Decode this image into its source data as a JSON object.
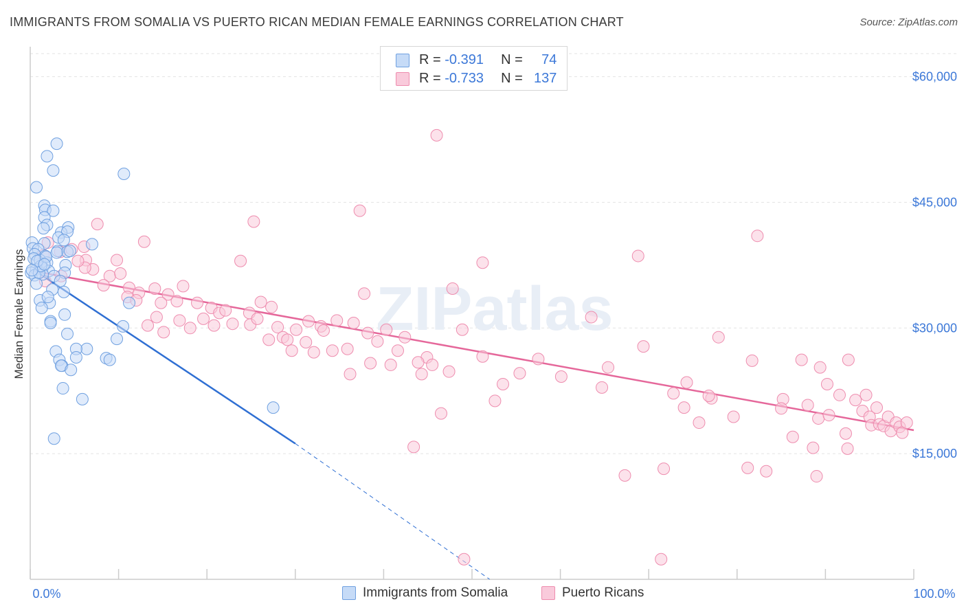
{
  "title": "IMMIGRANTS FROM SOMALIA VS PUERTO RICAN MEDIAN FEMALE EARNINGS CORRELATION CHART",
  "source": "Source: ZipAtlas.com",
  "watermark": "ZIPatlas",
  "legend": {
    "somalia": {
      "r_label": "R =",
      "r_value": "-0.391",
      "n_label": "N =",
      "n_value": "74"
    },
    "puerto": {
      "r_label": "R =",
      "r_value": "-0.733",
      "n_label": "N =",
      "n_value": "137"
    }
  },
  "bottom_legend": {
    "somalia": "Immigrants from Somalia",
    "puerto": "Puerto Ricans"
  },
  "colors": {
    "somalia_fill": "#c6dbf7",
    "somalia_stroke": "#6fa0e0",
    "somalia_line": "#2f6fd3",
    "puerto_fill": "#f9cadb",
    "puerto_stroke": "#ee8cae",
    "puerto_line": "#e5679a",
    "tick_text": "#3c78d8",
    "grid": "#e3e3e3"
  },
  "chart_data": {
    "type": "scatter",
    "title": "IMMIGRANTS FROM SOMALIA VS PUERTO RICAN MEDIAN FEMALE EARNINGS CORRELATION CHART",
    "xlabel": "",
    "ylabel": "Median Female Earnings",
    "xlim": [
      0,
      100
    ],
    "ylim": [
      0,
      63000
    ],
    "x_tick_labels": [
      "0.0%",
      "100.0%"
    ],
    "y_ticks": [
      15000,
      30000,
      45000,
      60000
    ],
    "y_tick_labels": [
      "$15,000",
      "$30,000",
      "$45,000",
      "$60,000"
    ],
    "grid": true,
    "legend_position": "top-center",
    "series": [
      {
        "name": "Immigrants from Somalia",
        "trend": {
          "x": [
            0.3,
            30
          ],
          "y": [
            37000,
            16200
          ],
          "dashed_to": [
            52,
            0
          ]
        },
        "points": [
          [
            3.0,
            52000
          ],
          [
            1.9,
            50500
          ],
          [
            2.6,
            48800
          ],
          [
            10.6,
            48400
          ],
          [
            0.7,
            46800
          ],
          [
            1.6,
            44600
          ],
          [
            1.7,
            44100
          ],
          [
            2.6,
            44000
          ],
          [
            1.6,
            43200
          ],
          [
            1.9,
            42300
          ],
          [
            4.3,
            42000
          ],
          [
            1.5,
            41900
          ],
          [
            3.5,
            41400
          ],
          [
            4.2,
            41500
          ],
          [
            3.2,
            40800
          ],
          [
            3.8,
            40500
          ],
          [
            0.2,
            40200
          ],
          [
            1.6,
            40100
          ],
          [
            7.0,
            40000
          ],
          [
            0.3,
            39500
          ],
          [
            0.9,
            39400
          ],
          [
            3.1,
            39200
          ],
          [
            4.2,
            39100
          ],
          [
            0.5,
            38800
          ],
          [
            1.7,
            38600
          ],
          [
            0.4,
            38300
          ],
          [
            1.1,
            38100
          ],
          [
            1.9,
            37800
          ],
          [
            4.0,
            37500
          ],
          [
            1.4,
            37200
          ],
          [
            0.7,
            37000
          ],
          [
            2.1,
            36800
          ],
          [
            0.1,
            36600
          ],
          [
            1.4,
            36400
          ],
          [
            3.9,
            36600
          ],
          [
            0.5,
            36300
          ],
          [
            2.7,
            36200
          ],
          [
            3.4,
            35600
          ],
          [
            0.7,
            35300
          ],
          [
            2.5,
            34600
          ],
          [
            3.8,
            34300
          ],
          [
            1.1,
            33300
          ],
          [
            2.2,
            33000
          ],
          [
            11.2,
            33000
          ],
          [
            1.3,
            32400
          ],
          [
            3.9,
            31600
          ],
          [
            2.3,
            30800
          ],
          [
            2.3,
            30600
          ],
          [
            10.5,
            30200
          ],
          [
            4.2,
            29300
          ],
          [
            9.8,
            28700
          ],
          [
            6.4,
            27500
          ],
          [
            5.2,
            27500
          ],
          [
            2.9,
            27200
          ],
          [
            5.2,
            26500
          ],
          [
            8.6,
            26400
          ],
          [
            9.0,
            26200
          ],
          [
            3.3,
            26200
          ],
          [
            3.6,
            25500
          ],
          [
            3.5,
            25500
          ],
          [
            4.6,
            25000
          ],
          [
            3.7,
            22800
          ],
          [
            5.9,
            21500
          ],
          [
            27.5,
            20500
          ],
          [
            2.7,
            16800
          ],
          [
            1.0,
            36600
          ],
          [
            1.2,
            37400
          ],
          [
            0.8,
            38000
          ],
          [
            1.8,
            38500
          ],
          [
            3.0,
            39000
          ],
          [
            0.2,
            36900
          ],
          [
            4.5,
            39200
          ],
          [
            1.6,
            37600
          ],
          [
            2.0,
            33700
          ]
        ]
      },
      {
        "name": "Puerto Ricans",
        "trend": {
          "x": [
            0.3,
            100
          ],
          "y": [
            36800,
            17800
          ]
        },
        "points": [
          [
            46.0,
            53000
          ],
          [
            37.3,
            44000
          ],
          [
            25.3,
            42700
          ],
          [
            7.6,
            42400
          ],
          [
            12.9,
            40300
          ],
          [
            82.3,
            41000
          ],
          [
            68.8,
            38600
          ],
          [
            51.2,
            37800
          ],
          [
            23.8,
            38000
          ],
          [
            9.8,
            38100
          ],
          [
            6.3,
            38100
          ],
          [
            2.0,
            40200
          ],
          [
            3.4,
            39100
          ],
          [
            6.1,
            39700
          ],
          [
            7.1,
            37000
          ],
          [
            9.0,
            36200
          ],
          [
            10.2,
            36500
          ],
          [
            3.5,
            36200
          ],
          [
            6.2,
            37200
          ],
          [
            1.7,
            35600
          ],
          [
            1.5,
            38700
          ],
          [
            4.7,
            39400
          ],
          [
            5.4,
            38000
          ],
          [
            8.3,
            35100
          ],
          [
            11.2,
            34800
          ],
          [
            12.3,
            34200
          ],
          [
            14.1,
            34700
          ],
          [
            15.6,
            34000
          ],
          [
            17.3,
            35000
          ],
          [
            11.0,
            33700
          ],
          [
            12.0,
            33300
          ],
          [
            14.8,
            33000
          ],
          [
            16.6,
            33200
          ],
          [
            18.9,
            33000
          ],
          [
            20.5,
            32400
          ],
          [
            21.4,
            31800
          ],
          [
            22.1,
            32100
          ],
          [
            24.8,
            31800
          ],
          [
            26.1,
            33100
          ],
          [
            27.3,
            32500
          ],
          [
            28.0,
            30100
          ],
          [
            24.9,
            30400
          ],
          [
            19.6,
            31100
          ],
          [
            16.9,
            30900
          ],
          [
            14.3,
            31300
          ],
          [
            13.3,
            30300
          ],
          [
            15.1,
            29500
          ],
          [
            18.1,
            30000
          ],
          [
            20.8,
            30300
          ],
          [
            22.9,
            30500
          ],
          [
            25.7,
            31100
          ],
          [
            28.6,
            28900
          ],
          [
            30.1,
            29800
          ],
          [
            31.5,
            30800
          ],
          [
            32.9,
            30200
          ],
          [
            33.2,
            29700
          ],
          [
            34.7,
            30900
          ],
          [
            36.6,
            30600
          ],
          [
            38.2,
            29400
          ],
          [
            39.3,
            28400
          ],
          [
            40.3,
            29800
          ],
          [
            41.6,
            27300
          ],
          [
            42.4,
            28900
          ],
          [
            44.9,
            26500
          ],
          [
            37.8,
            34100
          ],
          [
            47.8,
            34700
          ],
          [
            48.9,
            29800
          ],
          [
            51.2,
            26600
          ],
          [
            29.1,
            28600
          ],
          [
            27.0,
            28600
          ],
          [
            29.6,
            27300
          ],
          [
            31.2,
            28300
          ],
          [
            32.1,
            27100
          ],
          [
            35.9,
            27500
          ],
          [
            34.2,
            27300
          ],
          [
            38.5,
            25800
          ],
          [
            40.8,
            25600
          ],
          [
            43.9,
            25900
          ],
          [
            45.5,
            25600
          ],
          [
            47.4,
            24800
          ],
          [
            36.2,
            24500
          ],
          [
            44.3,
            24500
          ],
          [
            46.5,
            19800
          ],
          [
            43.4,
            15800
          ],
          [
            57.5,
            26300
          ],
          [
            63.5,
            31300
          ],
          [
            64.7,
            22900
          ],
          [
            65.4,
            25300
          ],
          [
            69.4,
            27800
          ],
          [
            72.8,
            22200
          ],
          [
            74.0,
            20500
          ],
          [
            75.7,
            18700
          ],
          [
            77.9,
            28900
          ],
          [
            81.7,
            26100
          ],
          [
            81.2,
            13300
          ],
          [
            83.3,
            12900
          ],
          [
            85.2,
            21500
          ],
          [
            85.0,
            20400
          ],
          [
            86.3,
            17000
          ],
          [
            87.3,
            26200
          ],
          [
            88.0,
            20800
          ],
          [
            88.6,
            15700
          ],
          [
            89.4,
            25300
          ],
          [
            89.2,
            19200
          ],
          [
            90.2,
            23300
          ],
          [
            90.4,
            19600
          ],
          [
            91.6,
            22000
          ],
          [
            92.3,
            17400
          ],
          [
            92.6,
            26200
          ],
          [
            93.4,
            21400
          ],
          [
            94.2,
            20100
          ],
          [
            94.6,
            22000
          ],
          [
            95.0,
            19400
          ],
          [
            95.8,
            20500
          ],
          [
            95.2,
            18400
          ],
          [
            96.1,
            18500
          ],
          [
            96.6,
            18300
          ],
          [
            97.1,
            19400
          ],
          [
            97.4,
            17700
          ],
          [
            98.0,
            18700
          ],
          [
            98.4,
            18200
          ],
          [
            98.7,
            17500
          ],
          [
            99.2,
            18700
          ],
          [
            52.6,
            21300
          ],
          [
            49.1,
            2400
          ],
          [
            71.4,
            2400
          ],
          [
            71.7,
            13200
          ],
          [
            67.3,
            12400
          ],
          [
            89.0,
            12300
          ],
          [
            74.3,
            23500
          ],
          [
            55.4,
            24600
          ],
          [
            60.1,
            24200
          ],
          [
            77.1,
            21600
          ],
          [
            79.6,
            19400
          ],
          [
            92.5,
            15600
          ],
          [
            76.8,
            21900
          ],
          [
            53.5,
            23300
          ]
        ]
      }
    ]
  }
}
